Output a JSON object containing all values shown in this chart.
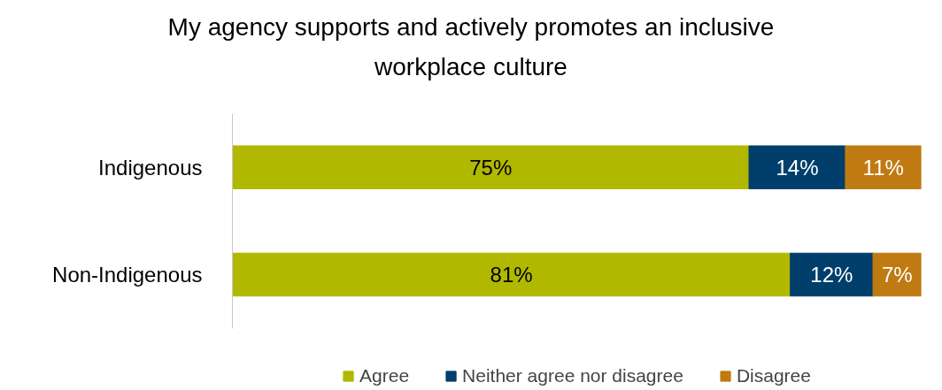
{
  "chart_data": {
    "type": "bar",
    "orientation": "horizontal",
    "stacked": true,
    "title": "My agency supports and actively promotes an inclusive workplace culture",
    "categories": [
      "Indigenous",
      "Non-Indigenous"
    ],
    "series": [
      {
        "name": "Agree",
        "color": "#b0b800",
        "values": [
          75,
          81
        ],
        "value_labels": [
          "75%",
          "81%"
        ]
      },
      {
        "name": "Neither agree nor disagree",
        "color": "#003f6b",
        "values": [
          14,
          12
        ],
        "value_labels": [
          "14%",
          "12%"
        ]
      },
      {
        "name": "Disagree",
        "color": "#c07a12",
        "values": [
          11,
          7
        ],
        "value_labels": [
          "11%",
          "7%"
        ]
      }
    ],
    "xlim": [
      0,
      100
    ],
    "tick_labels": "y",
    "grid": false,
    "legend": "bottom"
  }
}
